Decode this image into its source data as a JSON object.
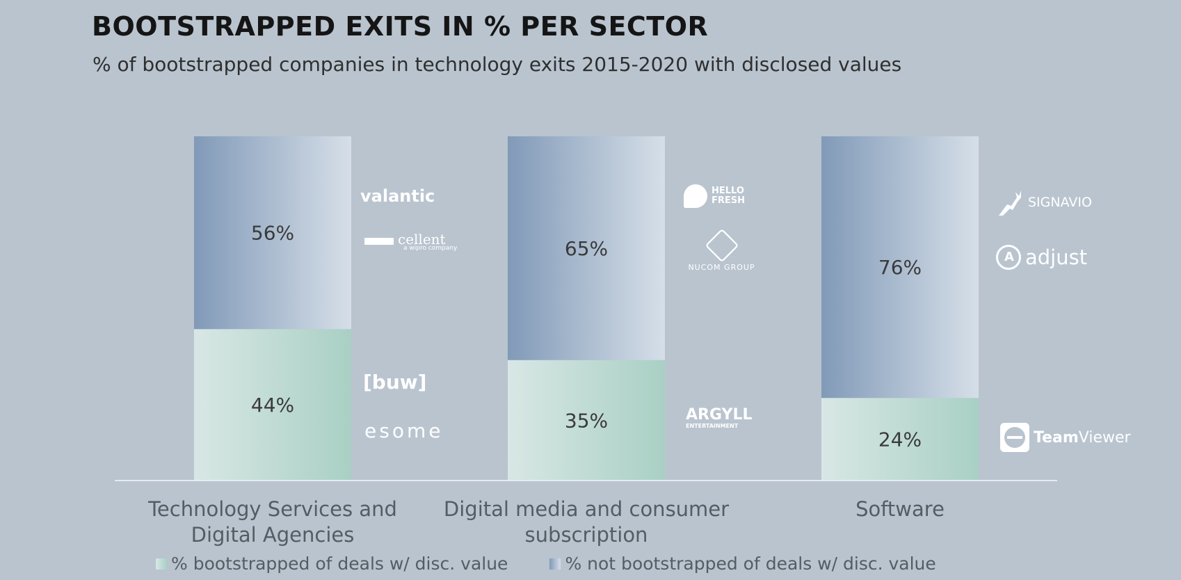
{
  "title": "BOOTSTRAPPED EXITS IN % PER SECTOR",
  "subtitle": "% of bootstrapped companies in technology exits 2015-2020 with disclosed values",
  "colors": {
    "background": "#b9c4cf",
    "bootstrapped_dark": "#a9d0c4",
    "bootstrapped_light": "#d8e7e5",
    "not_bootstrapped_dark": "#819ab8",
    "not_bootstrapped_light": "#d6dfe8",
    "axis": "#e6ebef",
    "category_text": "#555c63",
    "value_text": "#3a3a3a"
  },
  "chart_data": {
    "type": "bar",
    "stacked": true,
    "categories": [
      "Technology Services and\nDigital Agencies",
      "Digital media and consumer\nsubscription",
      "Software"
    ],
    "series": [
      {
        "name": "% bootstrapped of deals w/ disc. value",
        "values": [
          44,
          35,
          24
        ],
        "labels": [
          "44%",
          "35%",
          "24%"
        ]
      },
      {
        "name": "% not bootstrapped of deals w/ disc. value",
        "values": [
          56,
          65,
          76
        ],
        "labels": [
          "56%",
          "65%",
          "76%"
        ]
      }
    ],
    "ylim": [
      0,
      100
    ],
    "grid": false,
    "legend_position": "bottom"
  },
  "logos": {
    "valantic": "valantic",
    "cellent": "cellent",
    "cellent_sub": "a wipro company",
    "buw": "[buw]",
    "esome": "esome",
    "hellofresh": "HELLO\nFRESH",
    "ncg": "NUCOM GROUP",
    "argyll": "ARGYLL",
    "argyll_sub": "ENTERTAINMENT",
    "signavio": "SIGNAVIO",
    "adjust": "adjust",
    "teamviewer_bold": "Team",
    "teamviewer_light": "Viewer"
  }
}
